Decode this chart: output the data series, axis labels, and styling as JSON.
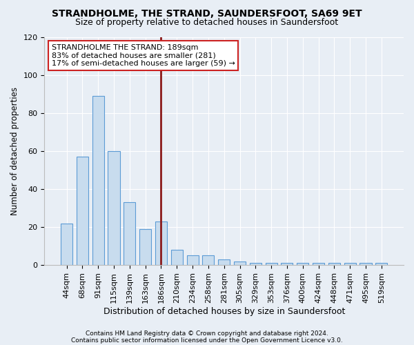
{
  "title": "STRANDHOLME, THE STRAND, SAUNDERSFOOT, SA69 9ET",
  "subtitle": "Size of property relative to detached houses in Saundersfoot",
  "xlabel": "Distribution of detached houses by size in Saundersfoot",
  "ylabel": "Number of detached properties",
  "categories": [
    "44sqm",
    "68sqm",
    "91sqm",
    "115sqm",
    "139sqm",
    "163sqm",
    "186sqm",
    "210sqm",
    "234sqm",
    "258sqm",
    "281sqm",
    "305sqm",
    "329sqm",
    "353sqm",
    "376sqm",
    "400sqm",
    "424sqm",
    "448sqm",
    "471sqm",
    "495sqm",
    "519sqm"
  ],
  "values": [
    22,
    57,
    89,
    60,
    33,
    19,
    23,
    8,
    5,
    5,
    3,
    2,
    1,
    1,
    1,
    1,
    1,
    1,
    1,
    1,
    1
  ],
  "bar_color": "#c8dcee",
  "bar_edge_color": "#5b9bd5",
  "vline_index": 6,
  "vline_color": "#8b1a1a",
  "annotation_line1": "STRANDHOLME THE STRAND: 189sqm",
  "annotation_line2": "83% of detached houses are smaller (281)",
  "annotation_line3": "17% of semi-detached houses are larger (59) →",
  "annotation_box_color": "#ffffff",
  "annotation_border_color": "#cc2222",
  "footer1": "Contains HM Land Registry data © Crown copyright and database right 2024.",
  "footer2": "Contains public sector information licensed under the Open Government Licence v3.0.",
  "background_color": "#e8eef5",
  "plot_bg_color": "#e8eef5",
  "ylim": [
    0,
    120
  ],
  "yticks": [
    0,
    20,
    40,
    60,
    80,
    100,
    120
  ],
  "title_fontsize": 10,
  "subtitle_fontsize": 9,
  "xlabel_fontsize": 9,
  "ylabel_fontsize": 8.5,
  "tick_fontsize": 8,
  "annotation_fontsize": 8
}
